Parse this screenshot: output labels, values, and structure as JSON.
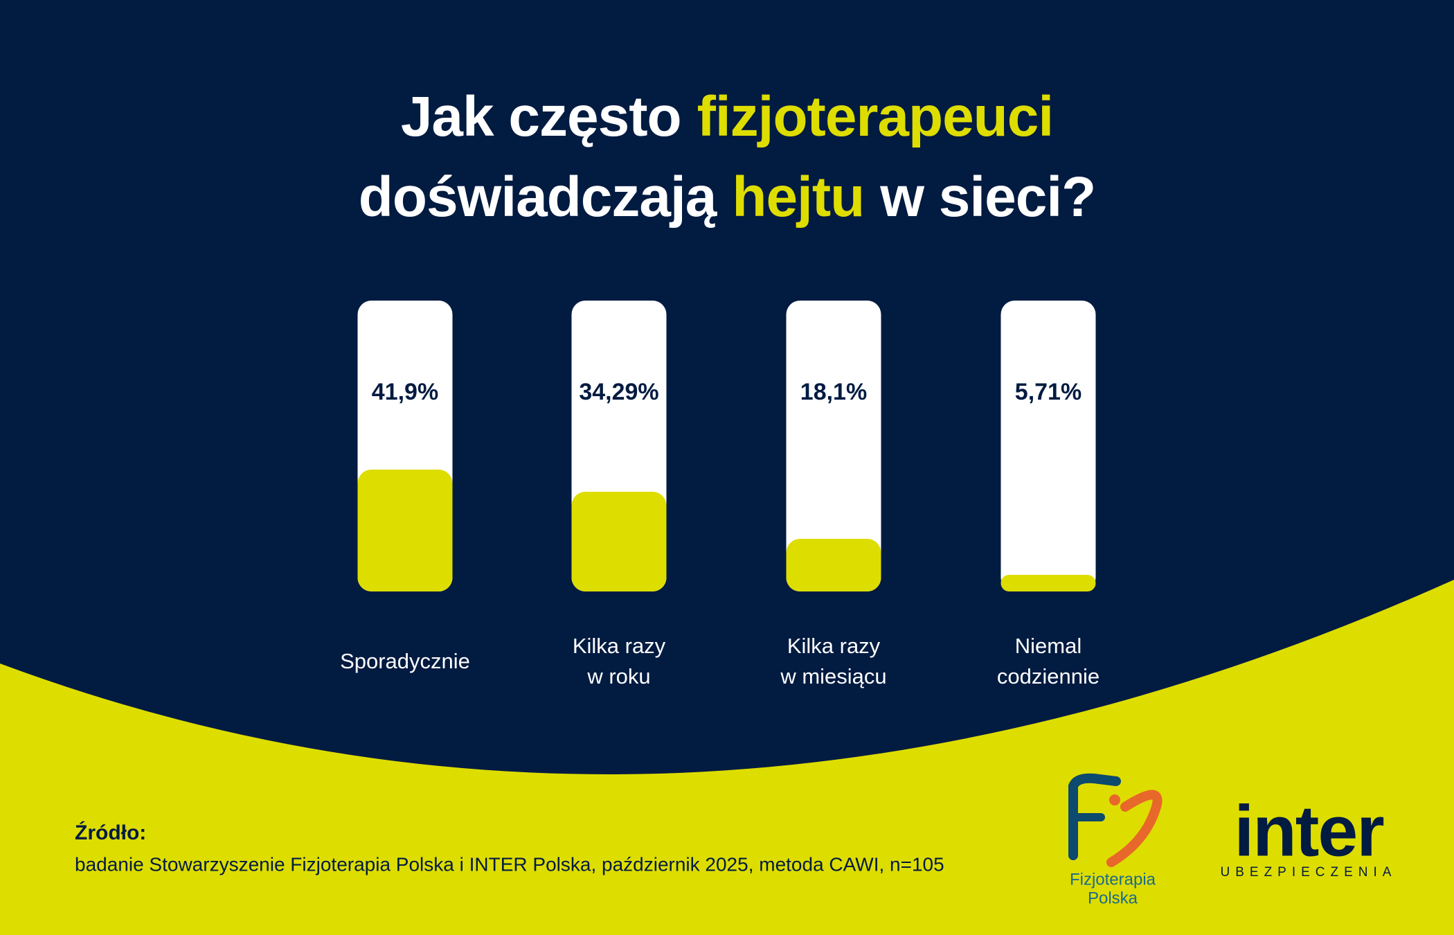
{
  "chart_data": {
    "type": "bar",
    "title_lines": [
      [
        {
          "text": "Jak często",
          "highlight": false
        },
        {
          "text": "fizjoterapeuci",
          "highlight": true
        }
      ],
      [
        {
          "text": "doświadczają",
          "highlight": false
        },
        {
          "text": "hejtu",
          "highlight": true
        },
        {
          "text": "w sieci?",
          "highlight": false
        }
      ]
    ],
    "categories": [
      [
        "Sporadycznie"
      ],
      [
        "Kilka razy",
        "w roku"
      ],
      [
        "Kilka razy",
        "w miesiącu"
      ],
      [
        "Niemal",
        "codziennie"
      ]
    ],
    "values": [
      41.9,
      34.29,
      18.1,
      5.71
    ],
    "value_labels": [
      "41,9%",
      "34,29%",
      "18,1%",
      "5,71%"
    ],
    "ylim": [
      0,
      100
    ],
    "color": "#dedd00",
    "track_color": "#ffffff",
    "highlight_color": "#dedd00",
    "background_color": "#021b41"
  },
  "source": {
    "label": "Źródło:",
    "text": "badanie Stowarzyszenie Fizjoterapia Polska i INTER Polska, październik 2025, metoda CAWI, n=105"
  },
  "logos": {
    "fp_lines": [
      "Fizjoterapia",
      "Polska"
    ],
    "inter": "inter",
    "inter_sub": "UBEZPIECZENIA"
  }
}
